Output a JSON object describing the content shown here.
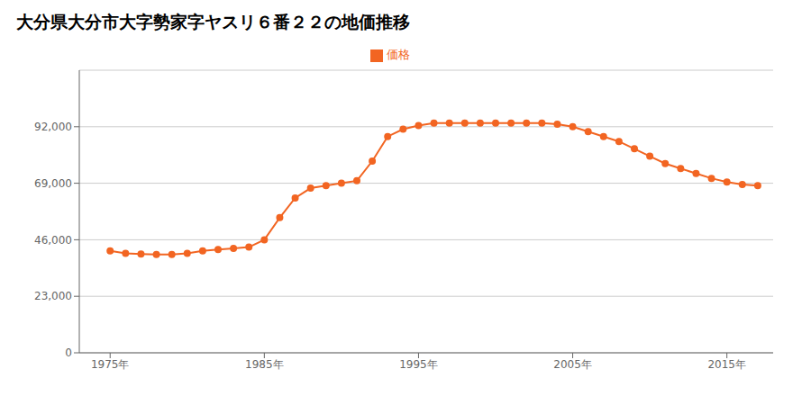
{
  "chart_data": {
    "type": "line",
    "title": "大分県大分市大字勢家字ヤスリ６番２２の地価推移",
    "x": [
      1975,
      1976,
      1977,
      1978,
      1979,
      1980,
      1981,
      1982,
      1983,
      1984,
      1985,
      1986,
      1987,
      1988,
      1989,
      1990,
      1991,
      1992,
      1993,
      1994,
      1995,
      1996,
      1997,
      1998,
      1999,
      2000,
      2001,
      2002,
      2003,
      2004,
      2005,
      2006,
      2007,
      2008,
      2009,
      2010,
      2011,
      2012,
      2013,
      2014,
      2015,
      2016,
      2017
    ],
    "series": [
      {
        "name": "価格",
        "color": "#F26522",
        "marker": "circle",
        "values": [
          41500,
          40500,
          40200,
          40000,
          40000,
          40500,
          41500,
          42000,
          42500,
          43000,
          46000,
          55000,
          63000,
          67000,
          68000,
          69000,
          70000,
          78000,
          88000,
          91000,
          92500,
          93500,
          93500,
          93500,
          93500,
          93500,
          93500,
          93500,
          93500,
          93000,
          92000,
          90000,
          88000,
          86000,
          83000,
          80000,
          77000,
          75000,
          73000,
          71000,
          69500,
          68500,
          68000
        ]
      }
    ],
    "xlim": [
      1973,
      2018
    ],
    "xticks": [
      {
        "value": 1975,
        "label": "1975年"
      },
      {
        "value": 1985,
        "label": "1985年"
      },
      {
        "value": 1995,
        "label": "1995年"
      },
      {
        "value": 2005,
        "label": "2005年"
      },
      {
        "value": 2015,
        "label": "2015年"
      }
    ],
    "ylim": [
      0,
      115000
    ],
    "yticks": [
      0,
      {
        "value": 23000,
        "label": "23,000"
      },
      {
        "value": 46000,
        "label": "46,000"
      },
      {
        "value": 69000,
        "label": "69,000"
      },
      {
        "value": 92000,
        "label": "92,000"
      }
    ],
    "grid": "y",
    "legend": "top"
  }
}
